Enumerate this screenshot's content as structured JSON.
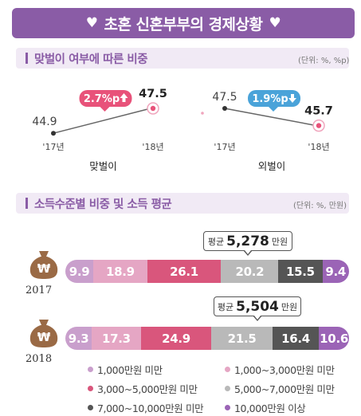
{
  "title": {
    "text": "초혼 신혼부부의 경제상황",
    "heart": "♥"
  },
  "section1": {
    "label": "맞벌이 여부에 따른 비중",
    "unit": "(단위: %, %p)"
  },
  "section2": {
    "label": "소득수준별 비중 및 소득 평균",
    "unit": "(단위: %, 만원)"
  },
  "colors": {
    "purple": "#8a5ca6",
    "up": "#e8527a",
    "down": "#4aa3d9",
    "seg": [
      "#c99fcc",
      "#e5a6c4",
      "#d9567c",
      "#b9b9b9",
      "#555555",
      "#9b64b6"
    ]
  },
  "chart_data": [
    {
      "type": "line",
      "title": "맞벌이",
      "x": [
        "'17년",
        "'18년"
      ],
      "values": [
        44.9,
        47.5
      ],
      "value_labels": [
        "44.9",
        "47.5"
      ],
      "change": "2.7%p",
      "direction": "up"
    },
    {
      "type": "line",
      "title": "외벌이",
      "x": [
        "'17년",
        "'18년"
      ],
      "values": [
        47.5,
        45.7
      ],
      "value_labels": [
        "47.5",
        "45.7"
      ],
      "change": "1.9%p",
      "direction": "down"
    },
    {
      "type": "bar",
      "stacked": true,
      "orientation": "horizontal",
      "categories": [
        "2017",
        "2018"
      ],
      "series": [
        {
          "name": "1,000만원 미만",
          "values": [
            9.9,
            9.3
          ]
        },
        {
          "name": "1,000~3,000만원 미만",
          "values": [
            18.9,
            17.3
          ]
        },
        {
          "name": "3,000~5,000만원 미만",
          "values": [
            26.1,
            24.9
          ]
        },
        {
          "name": "5,000~7,000만원 미만",
          "values": [
            20.2,
            21.5
          ]
        },
        {
          "name": "7,000~10,000만원 미만",
          "values": [
            15.5,
            16.4
          ]
        },
        {
          "name": "10,000만원 이상",
          "values": [
            9.4,
            10.6
          ]
        }
      ],
      "averages": [
        {
          "prefix": "평균",
          "value": "5,278",
          "suffix": "만원"
        },
        {
          "prefix": "평균",
          "value": "5,504",
          "suffix": "만원"
        }
      ],
      "legend_position": "bottom"
    }
  ]
}
